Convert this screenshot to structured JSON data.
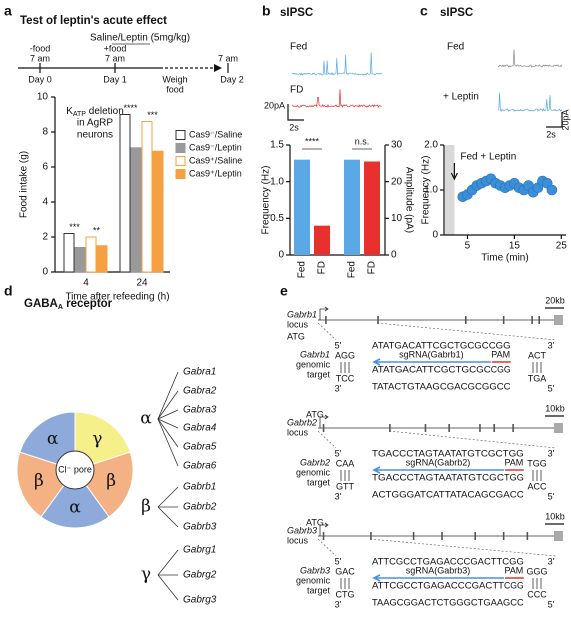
{
  "panel_labels": [
    "a",
    "b",
    "c",
    "d",
    "e"
  ],
  "panel_a_timeline": {
    "top_label": "Saline/Leptin (5mg/kg)",
    "labels": [
      "-food",
      "7 am",
      "+food",
      "7 am",
      "7 am"
    ],
    "days": [
      "Day 0",
      "Day 1",
      "Day 2"
    ],
    "weigh": [
      "Weigh",
      "food"
    ]
  },
  "chart_data": [
    {
      "type": "bar",
      "title": "Test of leptin's acute effect",
      "annotation": {
        "main": "K",
        "subscript": "ATP",
        "rest": " deletion",
        "lines": [
          "in AgRP",
          "neurons"
        ]
      },
      "x_label": "Time after refeeding (h)",
      "y_label": "Food intake (g)",
      "categories": [
        "4",
        "24"
      ],
      "series": [
        {
          "name": "Cas9⁻/Saline",
          "color": "#ffffff",
          "edge_color": "#333333",
          "values": [
            2.2,
            9.0
          ]
        },
        {
          "name": "Cas9⁻/Leptin",
          "color": "#9a9a9a",
          "edge_color": "#9a9a9a",
          "values": [
            1.4,
            7.1
          ]
        },
        {
          "name": "Cas9⁺/Saline",
          "color": "#ffffff",
          "edge_color": "#f5a042",
          "values": [
            2.0,
            8.6
          ]
        },
        {
          "name": "Cas9⁺/Leptin",
          "color": "#f5a042",
          "edge_color": "#f5a042",
          "values": [
            1.5,
            6.9
          ]
        }
      ],
      "significance": [
        [
          "***",
          "**"
        ],
        [
          "****",
          "***"
        ]
      ],
      "ylim": [
        0,
        10
      ],
      "yticks": [
        0,
        2,
        4,
        6,
        8,
        10
      ],
      "legend": "right"
    },
    {
      "type": "bar",
      "title": "sIPSC",
      "trace_labels": [
        "Fed",
        "FD"
      ],
      "scale_labels": [
        "20pA",
        "2s"
      ],
      "categories": [
        "Fed",
        "FD",
        "Fed",
        "FD"
      ],
      "values": [
        1.3,
        0.4,
        26,
        25.5
      ],
      "value_axes": [
        "y",
        "y",
        "y2",
        "y2"
      ],
      "colors": [
        "#5aa9e6",
        "#e8302f",
        "#5aa9e6",
        "#e8302f"
      ],
      "significance": [
        "****",
        "n.s."
      ],
      "y_label": "Frequency (Hz)",
      "y2_label": "Amplitude (pA)",
      "ylim": [
        0,
        1.5
      ],
      "yticks": [
        0,
        0.5,
        {
          "value": 1,
          "label": "1.0"
        },
        1.5
      ],
      "y2lim": [
        0,
        30
      ],
      "y2ticks": [
        0,
        10,
        20,
        30
      ]
    },
    {
      "type": "scatter",
      "title": "sIPSC",
      "trace_labels": [
        "Fed",
        "+ Leptin"
      ],
      "scale_labels": [
        "20pA",
        "2s"
      ],
      "annotation": "Fed + Leptin",
      "x_label": "Time (min)",
      "y_label": "Frequency (Hz)",
      "x": [
        4,
        5,
        6,
        7,
        8,
        9,
        10,
        11,
        12,
        13,
        14,
        15,
        16,
        17,
        18,
        19,
        20,
        21,
        22,
        23
      ],
      "values": [
        0.85,
        0.9,
        1.0,
        1.1,
        1.15,
        1.2,
        1.25,
        1.15,
        1.1,
        1.05,
        1.1,
        1.15,
        1.05,
        1.0,
        1.1,
        0.95,
        1.05,
        1.2,
        1.15,
        1.0
      ],
      "color": "#3a8fd9",
      "treatment_interval": [
        0,
        2
      ],
      "xlim": [
        0,
        26
      ],
      "xticks": [
        5,
        15,
        25
      ],
      "ylim": [
        0,
        2
      ],
      "yticks": [
        0,
        {
          "value": 1,
          "label": "1.0"
        },
        {
          "value": 2,
          "label": "2.0"
        }
      ]
    }
  ],
  "panel_d": {
    "title": "GABA",
    "title_sub": "A",
    "title_rest": " receptor",
    "pore": "Cl⁻ pore",
    "subunits": [
      "γ",
      "β",
      "α",
      "β",
      "α"
    ],
    "groups": [
      {
        "symbol": "α",
        "genes": [
          "Gabra1",
          "Gabra2",
          "Gabra3",
          "Gabra4",
          "Gabra5",
          "Gabra6"
        ]
      },
      {
        "symbol": "β",
        "genes": [
          "Gabrb1",
          "Gabrb2",
          "Gabrb3"
        ]
      },
      {
        "symbol": "γ",
        "genes": [
          "Gabrg1",
          "Gabrg2",
          "Gabrg3"
        ]
      }
    ]
  },
  "gene_targets": [
    {
      "gene": "Gabrb1",
      "locus": "locus",
      "start": "ATG",
      "scale": "20kb",
      "target_label": [
        "genomic",
        "target"
      ],
      "top": "ATATGACATTCGCTGCGCCGG",
      "sgrna": "sgRNA(Gabrb1)",
      "pam_label": "PAM",
      "guide": "ATATGACATTCGCTGCGC",
      "pam": "CGG",
      "bottom": "TATACTGTAAGCGACGCGGCC",
      "flank_left": [
        "AGG",
        "TCC"
      ],
      "flank_right": [
        "ACT",
        "TGA"
      ],
      "ends": [
        "5'",
        "3'",
        "3'",
        "5'"
      ]
    },
    {
      "gene": "Gabrb2",
      "locus": "locus",
      "start": "ATG",
      "scale": "10kb",
      "target_label": [
        "genomic",
        "target"
      ],
      "top": "TGACCCTAGTAATATGTCGCTGG",
      "sgrna": "sgRNA(Gabrb2)",
      "pam_label": "PAM",
      "guide": "TGACCCTAGTAATATGTCGC",
      "pam": "TGG",
      "bottom": "ACTGGGATCATTATACAGCGACC",
      "flank_left": [
        "CAA",
        "GTT"
      ],
      "flank_right": [
        "TGG",
        "ACC"
      ],
      "ends": [
        "5'",
        "3'",
        "3'",
        "5'"
      ]
    },
    {
      "gene": "Gabrb3",
      "locus": "locus",
      "start": "ATG",
      "scale": "10kb",
      "target_label": [
        "genomic",
        "target"
      ],
      "top": "ATTCGCCTGAGACCCGACTTCGG",
      "sgrna": "sgRNA(Gabrb3)",
      "pam_label": "PAM",
      "guide": "ATTCGCCTGAGACCCGACTT",
      "pam": "CGG",
      "bottom": "TAAGCGGACTCTGGGCTGAAGCC",
      "flank_left": [
        "GAC",
        "CTG"
      ],
      "flank_right": [
        "GGG",
        "CCC"
      ],
      "ends": [
        "5'",
        "3'",
        "3'",
        "5'"
      ]
    }
  ]
}
